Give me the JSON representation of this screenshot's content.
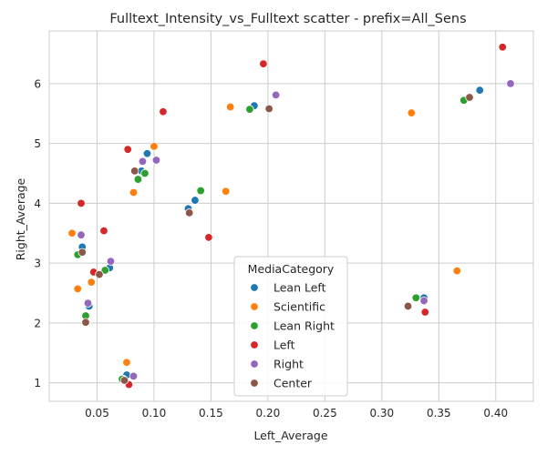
{
  "chart_data": {
    "type": "scatter",
    "title": "Fulltext_Intensity_vs_Fulltext scatter - prefix=All_Sens",
    "xlabel": "Left_Average",
    "ylabel": "Right_Average",
    "xlim": [
      0.008,
      0.433
    ],
    "ylim": [
      0.69,
      6.88
    ],
    "xticks": [
      0.05,
      0.1,
      0.15,
      0.2,
      0.25,
      0.3,
      0.35,
      0.4
    ],
    "xtick_labels": [
      "0.05",
      "0.10",
      "0.15",
      "0.20",
      "0.25",
      "0.30",
      "0.35",
      "0.40"
    ],
    "yticks": [
      1,
      2,
      3,
      4,
      5,
      6
    ],
    "ytick_labels": [
      "1",
      "2",
      "3",
      "4",
      "5",
      "6"
    ],
    "grid": true,
    "legend": {
      "title": "MediaCategory",
      "placement": "lower-center"
    },
    "series": [
      {
        "name": "Lean Left",
        "color": "#1f77b4",
        "points": [
          {
            "x": 0.188,
            "y": 5.63
          },
          {
            "x": 0.386,
            "y": 5.89
          },
          {
            "x": 0.094,
            "y": 4.83
          },
          {
            "x": 0.089,
            "y": 4.54
          },
          {
            "x": 0.136,
            "y": 4.05
          },
          {
            "x": 0.13,
            "y": 3.91
          },
          {
            "x": 0.037,
            "y": 3.27
          },
          {
            "x": 0.061,
            "y": 2.92
          },
          {
            "x": 0.043,
            "y": 2.28
          },
          {
            "x": 0.337,
            "y": 2.42
          },
          {
            "x": 0.076,
            "y": 1.13
          },
          {
            "x": 0.073,
            "y": 1.06
          }
        ]
      },
      {
        "name": "Scientific",
        "color": "#ff7f0e",
        "points": [
          {
            "x": 0.167,
            "y": 5.61
          },
          {
            "x": 0.326,
            "y": 5.51
          },
          {
            "x": 0.1,
            "y": 4.95
          },
          {
            "x": 0.082,
            "y": 4.18
          },
          {
            "x": 0.163,
            "y": 4.2
          },
          {
            "x": 0.028,
            "y": 3.5
          },
          {
            "x": 0.033,
            "y": 2.57
          },
          {
            "x": 0.045,
            "y": 2.68
          },
          {
            "x": 0.366,
            "y": 2.87
          },
          {
            "x": 0.076,
            "y": 1.34
          }
        ]
      },
      {
        "name": "Lean Right",
        "color": "#2ca02c",
        "points": [
          {
            "x": 0.184,
            "y": 5.57
          },
          {
            "x": 0.372,
            "y": 5.72
          },
          {
            "x": 0.092,
            "y": 4.5
          },
          {
            "x": 0.086,
            "y": 4.4
          },
          {
            "x": 0.141,
            "y": 4.21
          },
          {
            "x": 0.033,
            "y": 3.14
          },
          {
            "x": 0.057,
            "y": 2.88
          },
          {
            "x": 0.04,
            "y": 2.12
          },
          {
            "x": 0.33,
            "y": 2.42
          },
          {
            "x": 0.072,
            "y": 1.06
          }
        ]
      },
      {
        "name": "Left",
        "color": "#d62728",
        "points": [
          {
            "x": 0.196,
            "y": 6.33
          },
          {
            "x": 0.406,
            "y": 6.61
          },
          {
            "x": 0.108,
            "y": 5.53
          },
          {
            "x": 0.077,
            "y": 4.9
          },
          {
            "x": 0.036,
            "y": 4.0
          },
          {
            "x": 0.056,
            "y": 3.54
          },
          {
            "x": 0.148,
            "y": 3.43
          },
          {
            "x": 0.047,
            "y": 2.85
          },
          {
            "x": 0.338,
            "y": 2.18
          },
          {
            "x": 0.078,
            "y": 0.97
          }
        ]
      },
      {
        "name": "Right",
        "color": "#9467bd",
        "points": [
          {
            "x": 0.207,
            "y": 5.81
          },
          {
            "x": 0.413,
            "y": 6.0
          },
          {
            "x": 0.102,
            "y": 4.72
          },
          {
            "x": 0.09,
            "y": 4.7
          },
          {
            "x": 0.036,
            "y": 3.47
          },
          {
            "x": 0.062,
            "y": 3.03
          },
          {
            "x": 0.042,
            "y": 2.33
          },
          {
            "x": 0.337,
            "y": 2.37
          },
          {
            "x": 0.082,
            "y": 1.11
          }
        ]
      },
      {
        "name": "Center",
        "color": "#8c564b",
        "points": [
          {
            "x": 0.201,
            "y": 5.58
          },
          {
            "x": 0.377,
            "y": 5.77
          },
          {
            "x": 0.083,
            "y": 4.54
          },
          {
            "x": 0.131,
            "y": 3.84
          },
          {
            "x": 0.037,
            "y": 3.18
          },
          {
            "x": 0.052,
            "y": 2.81
          },
          {
            "x": 0.04,
            "y": 2.01
          },
          {
            "x": 0.323,
            "y": 2.28
          },
          {
            "x": 0.074,
            "y": 1.04
          }
        ]
      }
    ]
  }
}
